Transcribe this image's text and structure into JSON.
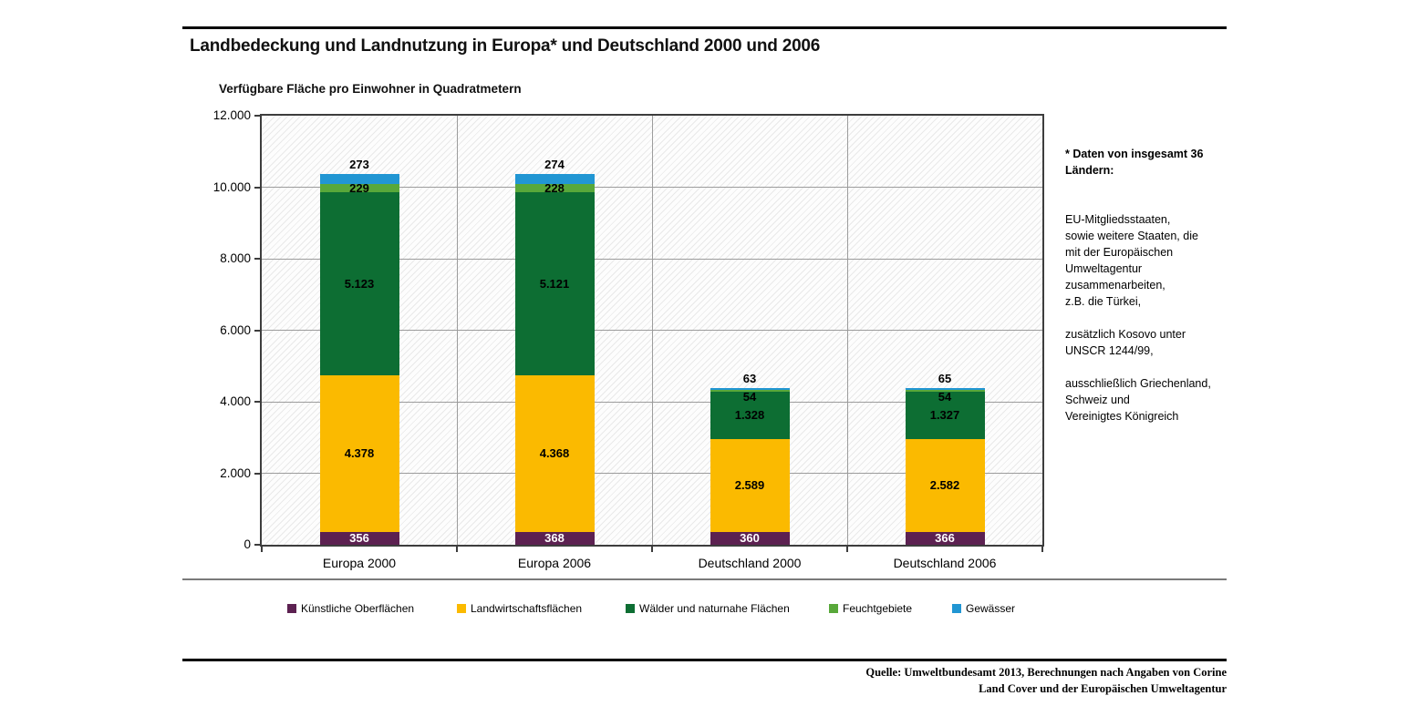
{
  "header": {
    "title": "Landbedeckung und Landnutzung in Europa* und Deutschland 2000 und 2006"
  },
  "chart_data": {
    "type": "bar",
    "stacked": true,
    "title": "Verfügbare Fläche pro Einwohner in Quadratmetern",
    "categories": [
      "Europa 2000",
      "Europa 2006",
      "Deutschland 2000",
      "Deutschland 2006"
    ],
    "series": [
      {
        "name": "Künstliche Oberflächen",
        "color": "#5c2151",
        "label_color": "#ffffff",
        "values": [
          356,
          368,
          360,
          366
        ]
      },
      {
        "name": "Landwirtschaftsflächen",
        "color": "#fbba00",
        "label_color": "#000000",
        "values": [
          4378,
          4368,
          2589,
          2582
        ]
      },
      {
        "name": "Wälder und naturnahe Flächen",
        "color": "#0d6e33",
        "label_color": "#000000",
        "values": [
          5123,
          5121,
          1328,
          1327
        ]
      },
      {
        "name": "Feuchtgebiete",
        "color": "#58a83a",
        "label_color": "#000000",
        "values": [
          229,
          228,
          54,
          54
        ]
      },
      {
        "name": "Gewässer",
        "color": "#2196d3",
        "label_color": "#000000",
        "values": [
          273,
          274,
          63,
          65
        ]
      }
    ],
    "ylim": [
      0,
      12000
    ],
    "ytick_step": 2000,
    "ytick_labels": [
      "0",
      "2.000",
      "4.000",
      "6.000",
      "8.000",
      "10.000",
      "12.000"
    ],
    "grid": true,
    "legend_position": "bottom"
  },
  "note": {
    "heading": "* Daten von insgesamt 36\nLändern:",
    "body": "EU-Mitgliedsstaaten,\nsowie weitere Staaten, die\nmit der Europäischen\nUmweltagentur\nzusammenarbeiten,\nz.B.  die Türkei,\n\nzusätzlich Kosovo unter\nUNSCR 1244/99,\n\nausschließlich Griechenland,\nSchweiz und\nVereinigtes Königreich"
  },
  "source": {
    "text": "Quelle: Umweltbundesamt 2013, Berechnungen nach Angaben von Corine\nLand Cover und der Europäischen Umweltagentur"
  }
}
